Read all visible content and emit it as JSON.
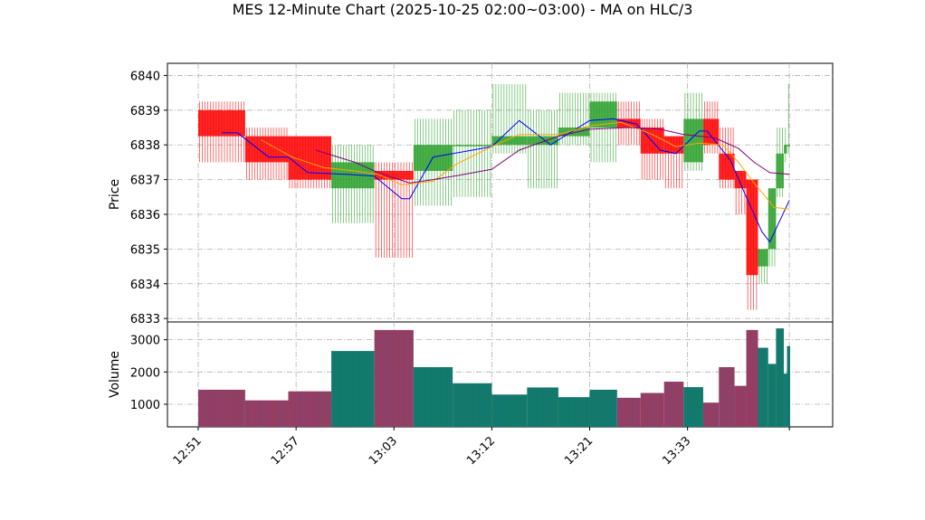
{
  "chart_data": {
    "type": "ohlc_volume",
    "title": "MES 12-Minute Chart (2025-10-25 02:00~03:00) - MA on HLC/3",
    "price_panel": {
      "ylabel": "Price",
      "ylim": [
        6832.9,
        6840.35
      ],
      "yticks": [
        "6833",
        "6834",
        "6835",
        "6836",
        "6837",
        "6838",
        "6839",
        "6840"
      ],
      "grid": true
    },
    "volume_panel": {
      "ylabel": "Volume",
      "ylim": [
        300,
        3550
      ],
      "yticks": [
        "1000",
        "2000",
        "3000"
      ],
      "grid": true
    },
    "xlim": [
      0,
      77.8
    ],
    "xticks": [
      {
        "x": 0,
        "label": "12:51"
      },
      {
        "x": 12.5,
        "label": "12:57"
      },
      {
        "x": 25,
        "label": "13:03"
      },
      {
        "x": 37.5,
        "label": "13:12"
      },
      {
        "x": 50,
        "label": "13:21"
      },
      {
        "x": 62.5,
        "label": "13:33"
      },
      {
        "x": 75.5,
        "label": ""
      }
    ],
    "colors": {
      "up": "#2ca02c",
      "down": "#ff0000",
      "ma_fast": "#0000ff",
      "ma_mid": "#ffa500",
      "ma_slow": "#800080",
      "vol_down": "#b03050",
      "vol_up": "#107a5a",
      "vol_line": "#1f77b4"
    },
    "bars": [
      {
        "x0": 0,
        "x1": 6,
        "open": 6839.0,
        "high": 6839.25,
        "low": 6837.5,
        "close": 6838.25,
        "volume": 1450
      },
      {
        "x0": 6,
        "x1": 11.5,
        "open": 6838.25,
        "high": 6838.5,
        "low": 6837.0,
        "close": 6837.5,
        "volume": 1120
      },
      {
        "x0": 11.5,
        "x1": 17,
        "open": 6838.25,
        "high": 6838.25,
        "low": 6836.75,
        "close": 6837.0,
        "volume": 1400
      },
      {
        "x0": 17,
        "x1": 22.5,
        "open": 6836.75,
        "high": 6838.0,
        "low": 6835.75,
        "close": 6837.5,
        "volume": 2650
      },
      {
        "x0": 22.5,
        "x1": 27.5,
        "open": 6837.25,
        "high": 6837.5,
        "low": 6834.75,
        "close": 6837.0,
        "volume": 3300
      },
      {
        "x0": 27.5,
        "x1": 32.5,
        "open": 6837.25,
        "high": 6838.75,
        "low": 6836.25,
        "close": 6838.0,
        "volume": 2150
      },
      {
        "x0": 32.5,
        "x1": 37.5,
        "open": 6838.0,
        "high": 6839.0,
        "low": 6836.5,
        "close": 6838.0,
        "volume": 1650
      },
      {
        "x0": 37.5,
        "x1": 42,
        "open": 6838.0,
        "high": 6839.75,
        "low": 6837.75,
        "close": 6838.25,
        "volume": 1300
      },
      {
        "x0": 42,
        "x1": 46,
        "open": 6838.0,
        "high": 6839.0,
        "low": 6836.75,
        "close": 6838.25,
        "volume": 1520
      },
      {
        "x0": 46,
        "x1": 50,
        "open": 6838.25,
        "high": 6839.5,
        "low": 6838.0,
        "close": 6838.5,
        "volume": 1220
      },
      {
        "x0": 50,
        "x1": 53.5,
        "open": 6838.5,
        "high": 6839.5,
        "low": 6837.5,
        "close": 6839.25,
        "volume": 1450
      },
      {
        "x0": 53.5,
        "x1": 56.5,
        "open": 6838.75,
        "high": 6839.25,
        "low": 6838.0,
        "close": 6838.5,
        "volume": 1200
      },
      {
        "x0": 56.5,
        "x1": 59.5,
        "open": 6838.5,
        "high": 6838.75,
        "low": 6837.0,
        "close": 6837.75,
        "volume": 1350
      },
      {
        "x0": 59.5,
        "x1": 62,
        "open": 6838.25,
        "high": 6838.25,
        "low": 6836.75,
        "close": 6837.75,
        "volume": 1700
      },
      {
        "x0": 62,
        "x1": 64.5,
        "open": 6837.5,
        "high": 6839.5,
        "low": 6837.25,
        "close": 6838.75,
        "volume": 1530
      },
      {
        "x0": 64.5,
        "x1": 66.5,
        "open": 6838.75,
        "high": 6839.25,
        "low": 6837.75,
        "close": 6838.0,
        "volume": 1050
      },
      {
        "x0": 66.5,
        "x1": 68.5,
        "open": 6837.75,
        "high": 6838.5,
        "low": 6836.75,
        "close": 6837.0,
        "volume": 2150
      },
      {
        "x0": 68.5,
        "x1": 70,
        "open": 6837.25,
        "high": 6837.25,
        "low": 6836.0,
        "close": 6836.75,
        "volume": 1570
      },
      {
        "x0": 70,
        "x1": 71.5,
        "open": 6837.0,
        "high": 6837.0,
        "low": 6833.25,
        "close": 6834.25,
        "volume": 3300
      },
      {
        "x0": 71.5,
        "x1": 72.8,
        "open": 6834.5,
        "high": 6835.0,
        "low": 6834.0,
        "close": 6835.0,
        "volume": 2750
      },
      {
        "x0": 72.8,
        "x1": 73.8,
        "open": 6835.0,
        "high": 6836.75,
        "low": 6834.5,
        "close": 6836.75,
        "volume": 2250
      },
      {
        "x0": 73.8,
        "x1": 74.8,
        "open": 6836.75,
        "high": 6838.5,
        "low": 6836.5,
        "close": 6837.75,
        "volume": 3350
      },
      {
        "x0": 74.8,
        "x1": 75.2,
        "open": 6837.75,
        "high": 6838.5,
        "low": 6837.5,
        "close": 6838.0,
        "volume": 1950
      },
      {
        "x0": 75.2,
        "x1": 75.6,
        "open": 6838.0,
        "high": 6839.75,
        "low": 6837.75,
        "close": 6838.0,
        "volume": 2800
      }
    ],
    "moving_averages": [
      {
        "color_key": "ma_fast",
        "points": [
          [
            3,
            6838.35
          ],
          [
            5,
            6838.35
          ],
          [
            9,
            6837.65
          ],
          [
            11.5,
            6837.65
          ],
          [
            14,
            6837.2
          ],
          [
            19,
            6837.15
          ],
          [
            22.5,
            6837.1
          ],
          [
            26,
            6836.45
          ],
          [
            27,
            6836.45
          ],
          [
            30,
            6837.65
          ],
          [
            35,
            6837.85
          ],
          [
            37.5,
            6837.95
          ],
          [
            41,
            6838.7
          ],
          [
            45,
            6838.0
          ],
          [
            50,
            6838.7
          ],
          [
            53,
            6838.75
          ],
          [
            56,
            6838.6
          ],
          [
            59,
            6837.85
          ],
          [
            61,
            6837.75
          ],
          [
            64,
            6838.4
          ],
          [
            65,
            6838.4
          ],
          [
            68,
            6837.55
          ],
          [
            70,
            6836.5
          ],
          [
            72,
            6835.5
          ],
          [
            73,
            6835.2
          ],
          [
            75.5,
            6836.4
          ]
        ]
      },
      {
        "color_key": "ma_mid",
        "points": [
          [
            8,
            6838.15
          ],
          [
            12,
            6837.65
          ],
          [
            16,
            6837.35
          ],
          [
            20,
            6837.25
          ],
          [
            23,
            6837.15
          ],
          [
            26,
            6836.85
          ],
          [
            30,
            6836.95
          ],
          [
            33,
            6837.45
          ],
          [
            37.5,
            6837.95
          ],
          [
            41,
            6838.3
          ],
          [
            46,
            6838.3
          ],
          [
            50,
            6838.55
          ],
          [
            54,
            6838.65
          ],
          [
            58,
            6838.3
          ],
          [
            61,
            6837.95
          ],
          [
            64,
            6838.05
          ],
          [
            67,
            6838.0
          ],
          [
            69,
            6837.5
          ],
          [
            71,
            6836.9
          ],
          [
            72.5,
            6836.5
          ],
          [
            73.5,
            6836.2
          ],
          [
            75.5,
            6836.15
          ]
        ]
      },
      {
        "color_key": "ma_slow",
        "points": [
          [
            15,
            6837.85
          ],
          [
            20,
            6837.5
          ],
          [
            23,
            6837.2
          ],
          [
            27,
            6836.9
          ],
          [
            30,
            6837.0
          ],
          [
            34,
            6837.15
          ],
          [
            37.5,
            6837.3
          ],
          [
            41,
            6837.85
          ],
          [
            46,
            6838.25
          ],
          [
            50,
            6838.45
          ],
          [
            55,
            6838.5
          ],
          [
            59,
            6838.45
          ],
          [
            62,
            6838.3
          ],
          [
            66,
            6838.2
          ],
          [
            69,
            6837.9
          ],
          [
            71,
            6837.5
          ],
          [
            73,
            6837.2
          ],
          [
            75.5,
            6837.15
          ]
        ]
      }
    ]
  }
}
